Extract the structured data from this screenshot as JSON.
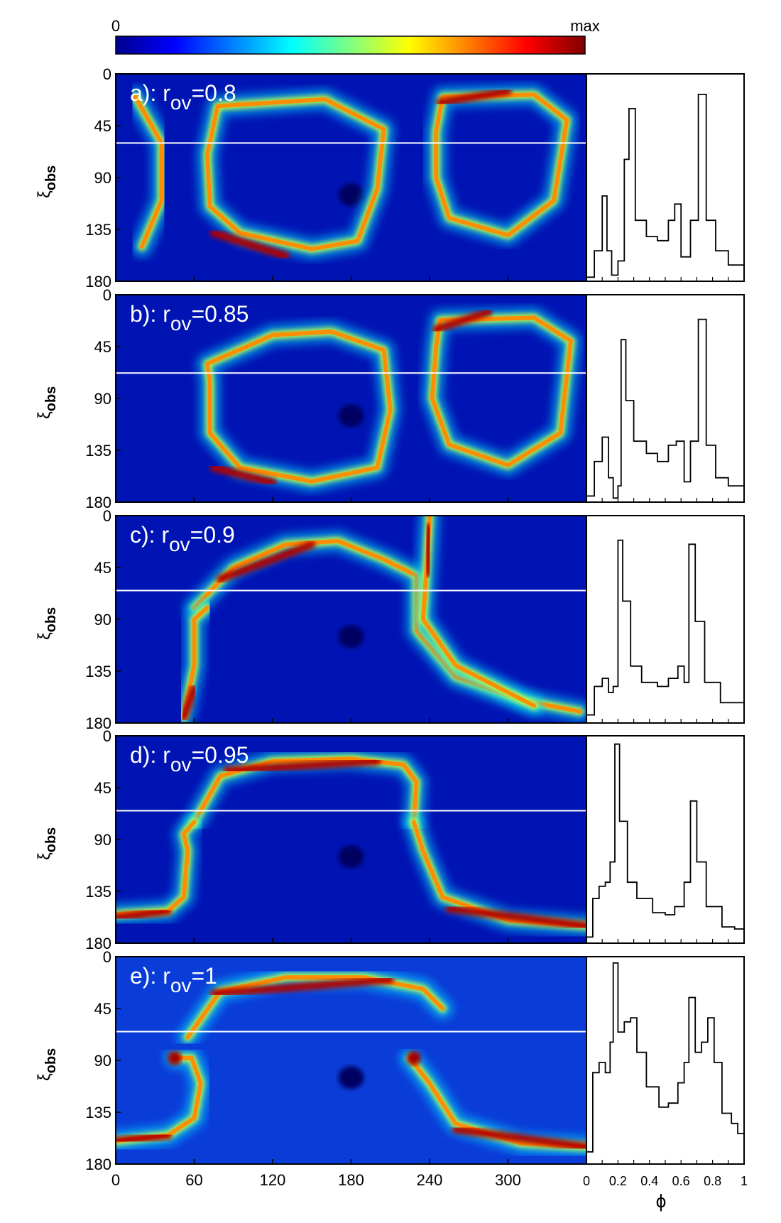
{
  "colorbar": {
    "min_label": "0",
    "max_label": "max",
    "colors": [
      "#00008f",
      "#0000ff",
      "#0080ff",
      "#00ffff",
      "#80ff80",
      "#ffff00",
      "#ff8000",
      "#ff0000",
      "#800000"
    ]
  },
  "heatmap_axes": {
    "x_ticks": [
      "0",
      "60",
      "120",
      "180",
      "240",
      "300"
    ],
    "y_ticks": [
      "0",
      "45",
      "90",
      "135",
      "180"
    ],
    "ylabel_main": "ξ",
    "ylabel_sub": "obs",
    "xlim": [
      0,
      360
    ],
    "ylim": [
      0,
      180
    ]
  },
  "profile_axes": {
    "x_ticks": [
      "0",
      "0.2",
      "0.4",
      "0.6",
      "0.8",
      "1"
    ],
    "xlabel": "ϕ",
    "xlim": [
      0,
      1
    ]
  },
  "chart_data": [
    {
      "type": "heatmap",
      "panel": "a",
      "title_prefix": "a): r",
      "title_sub": "ov",
      "title_suffix": "=0.8",
      "r_ov": 0.8,
      "cut_line_xi": 60,
      "curves": [
        {
          "from": 0,
          "pts": [
            [
              78,
              28
            ],
            [
              160,
              22
            ],
            [
              205,
              48
            ],
            [
              200,
              100
            ],
            [
              185,
              145
            ],
            [
              150,
              152
            ],
            [
              95,
              138
            ],
            [
              72,
              115
            ],
            [
              70,
              70
            ],
            [
              78,
              28
            ]
          ],
          "peak": [
            [
              75,
              138
            ],
            [
              130,
              158
            ]
          ]
        },
        {
          "from": 0,
          "pts": [
            [
              250,
              20
            ],
            [
              320,
              18
            ],
            [
              345,
              40
            ],
            [
              335,
              110
            ],
            [
              300,
              140
            ],
            [
              255,
              125
            ],
            [
              245,
              90
            ],
            [
              245,
              50
            ],
            [
              250,
              20
            ]
          ],
          "peak": [
            [
              248,
              25
            ],
            [
              300,
              15
            ]
          ]
        },
        {
          "from": 0,
          "pts": [
            [
              15,
              20
            ],
            [
              35,
              60
            ],
            [
              35,
              110
            ],
            [
              20,
              150
            ]
          ],
          "peak": null
        }
      ],
      "profile": [
        [
          0,
          0.02
        ],
        [
          0.05,
          0.15
        ],
        [
          0.1,
          0.42
        ],
        [
          0.13,
          0.15
        ],
        [
          0.16,
          0.03
        ],
        [
          0.2,
          0.1
        ],
        [
          0.24,
          0.6
        ],
        [
          0.27,
          0.85
        ],
        [
          0.31,
          0.3
        ],
        [
          0.38,
          0.22
        ],
        [
          0.45,
          0.2
        ],
        [
          0.52,
          0.3
        ],
        [
          0.56,
          0.38
        ],
        [
          0.6,
          0.12
        ],
        [
          0.66,
          0.3
        ],
        [
          0.71,
          0.92
        ],
        [
          0.76,
          0.3
        ],
        [
          0.82,
          0.15
        ],
        [
          0.9,
          0.08
        ],
        [
          1.0,
          0.06
        ]
      ]
    },
    {
      "type": "heatmap",
      "panel": "b",
      "title_prefix": "b): r",
      "title_sub": "ov",
      "title_suffix": "=0.85",
      "r_ov": 0.85,
      "cut_line_xi": 68,
      "curves": [
        {
          "from": 0,
          "pts": [
            [
              70,
              60
            ],
            [
              120,
              35
            ],
            [
              165,
              32
            ],
            [
              205,
              48
            ],
            [
              210,
              100
            ],
            [
              200,
              150
            ],
            [
              150,
              162
            ],
            [
              95,
              150
            ],
            [
              72,
              120
            ],
            [
              72,
              75
            ],
            [
              70,
              60
            ]
          ],
          "peak": [
            [
              75,
              150
            ],
            [
              120,
              163
            ]
          ]
        },
        {
          "from": 0,
          "pts": [
            [
              248,
              22
            ],
            [
              320,
              20
            ],
            [
              348,
              40
            ],
            [
              340,
              120
            ],
            [
              300,
              148
            ],
            [
              255,
              130
            ],
            [
              242,
              90
            ],
            [
              245,
              45
            ],
            [
              248,
              22
            ]
          ],
          "peak": [
            [
              245,
              30
            ],
            [
              285,
              15
            ]
          ]
        }
      ],
      "profile": [
        [
          0,
          0.03
        ],
        [
          0.05,
          0.2
        ],
        [
          0.1,
          0.32
        ],
        [
          0.14,
          0.12
        ],
        [
          0.17,
          0.02
        ],
        [
          0.2,
          0.08
        ],
        [
          0.22,
          0.8
        ],
        [
          0.25,
          0.5
        ],
        [
          0.3,
          0.3
        ],
        [
          0.38,
          0.24
        ],
        [
          0.45,
          0.2
        ],
        [
          0.52,
          0.28
        ],
        [
          0.57,
          0.3
        ],
        [
          0.62,
          0.1
        ],
        [
          0.66,
          0.3
        ],
        [
          0.71,
          0.9
        ],
        [
          0.76,
          0.28
        ],
        [
          0.82,
          0.12
        ],
        [
          0.9,
          0.08
        ],
        [
          1.0,
          0.07
        ]
      ]
    },
    {
      "type": "heatmap",
      "panel": "c",
      "title_prefix": "c): r",
      "title_sub": "ov",
      "title_suffix": "=0.9",
      "r_ov": 0.9,
      "cut_line_xi": 65,
      "curves": [
        {
          "from": 0,
          "pts": [
            [
              60,
              80
            ],
            [
              90,
              45
            ],
            [
              130,
              25
            ],
            [
              170,
              22
            ],
            [
              205,
              38
            ],
            [
              230,
              52
            ],
            [
              230,
              100
            ],
            [
              260,
              140
            ],
            [
              310,
              160
            ],
            [
              355,
              170
            ]
          ],
          "peak": [
            [
              80,
              55
            ],
            [
              150,
              25
            ]
          ]
        },
        {
          "from": 0,
          "pts": [
            [
              52,
              175
            ],
            [
              60,
              130
            ],
            [
              60,
              90
            ],
            [
              70,
              80
            ]
          ],
          "peak": [
            [
              52,
              175
            ],
            [
              60,
              150
            ]
          ]
        },
        {
          "from": 0,
          "pts": [
            [
              240,
              0
            ],
            [
              238,
              40
            ],
            [
              235,
              90
            ],
            [
              260,
              130
            ],
            [
              320,
              165
            ]
          ],
          "peak": [
            [
              240,
              10
            ],
            [
              238,
              50
            ]
          ]
        }
      ],
      "profile": [
        [
          0,
          0.04
        ],
        [
          0.05,
          0.18
        ],
        [
          0.1,
          0.22
        ],
        [
          0.14,
          0.15
        ],
        [
          0.17,
          0.18
        ],
        [
          0.2,
          0.9
        ],
        [
          0.23,
          0.6
        ],
        [
          0.28,
          0.28
        ],
        [
          0.35,
          0.2
        ],
        [
          0.45,
          0.18
        ],
        [
          0.52,
          0.22
        ],
        [
          0.58,
          0.28
        ],
        [
          0.62,
          0.2
        ],
        [
          0.65,
          0.88
        ],
        [
          0.69,
          0.5
        ],
        [
          0.75,
          0.2
        ],
        [
          0.85,
          0.1
        ],
        [
          0.94,
          0.1
        ],
        [
          1.0,
          0.05
        ]
      ]
    },
    {
      "type": "heatmap",
      "panel": "d",
      "title_prefix": "d): r",
      "title_sub": "ov",
      "title_suffix": "=0.95",
      "r_ov": 0.95,
      "cut_line_xi": 65,
      "curves": [
        {
          "from": 0,
          "pts": [
            [
              60,
              75
            ],
            [
              80,
              35
            ],
            [
              120,
              22
            ],
            [
              180,
              20
            ],
            [
              220,
              25
            ],
            [
              230,
              40
            ],
            [
              228,
              75
            ]
          ],
          "peak": [
            [
              85,
              30
            ],
            [
              200,
              22
            ]
          ]
        },
        {
          "from": 0,
          "pts": [
            [
              0,
              155
            ],
            [
              40,
              152
            ],
            [
              52,
              140
            ],
            [
              55,
              100
            ],
            [
              52,
              85
            ],
            [
              60,
              75
            ]
          ],
          "peak": [
            [
              0,
              158
            ],
            [
              40,
              152
            ]
          ]
        },
        {
          "from": 0,
          "pts": [
            [
              228,
              75
            ],
            [
              235,
              100
            ],
            [
              250,
              140
            ],
            [
              300,
              160
            ],
            [
              360,
              165
            ]
          ],
          "peak": [
            [
              255,
              150
            ],
            [
              360,
              165
            ]
          ]
        }
      ],
      "profile": [
        [
          0,
          0.03
        ],
        [
          0.04,
          0.22
        ],
        [
          0.08,
          0.28
        ],
        [
          0.12,
          0.3
        ],
        [
          0.15,
          0.4
        ],
        [
          0.18,
          0.98
        ],
        [
          0.21,
          0.6
        ],
        [
          0.26,
          0.3
        ],
        [
          0.32,
          0.22
        ],
        [
          0.42,
          0.15
        ],
        [
          0.5,
          0.14
        ],
        [
          0.56,
          0.18
        ],
        [
          0.62,
          0.3
        ],
        [
          0.66,
          0.7
        ],
        [
          0.7,
          0.4
        ],
        [
          0.76,
          0.18
        ],
        [
          0.86,
          0.08
        ],
        [
          0.94,
          0.07
        ],
        [
          1.0,
          0.04
        ]
      ]
    },
    {
      "type": "heatmap",
      "panel": "e",
      "title_prefix": "e): r",
      "title_sub": "ov",
      "title_suffix": "=1",
      "r_ov": 1,
      "cut_line_xi": 65,
      "curves": [
        {
          "from": 0,
          "pts": [
            [
              55,
              70
            ],
            [
              80,
              30
            ],
            [
              130,
              18
            ],
            [
              190,
              18
            ],
            [
              235,
              28
            ],
            [
              250,
              45
            ]
          ],
          "peak": [
            [
              75,
              32
            ],
            [
              210,
              20
            ]
          ]
        },
        {
          "from": 0,
          "pts": [
            [
              0,
              160
            ],
            [
              40,
              155
            ],
            [
              60,
              140
            ],
            [
              65,
              110
            ],
            [
              58,
              88
            ],
            [
              45,
              88
            ]
          ],
          "peak": [
            [
              0,
              160
            ],
            [
              40,
              155
            ]
          ]
        },
        {
          "from": 0,
          "pts": [
            [
              225,
              88
            ],
            [
              240,
              110
            ],
            [
              260,
              145
            ],
            [
              310,
              162
            ],
            [
              360,
              165
            ]
          ],
          "peak": [
            [
              260,
              150
            ],
            [
              360,
              165
            ]
          ]
        }
      ],
      "hotspots": [
        [
          45,
          88
        ],
        [
          228,
          88
        ]
      ],
      "profile": [
        [
          0,
          0.06
        ],
        [
          0.04,
          0.45
        ],
        [
          0.08,
          0.5
        ],
        [
          0.12,
          0.45
        ],
        [
          0.15,
          0.6
        ],
        [
          0.17,
          0.99
        ],
        [
          0.2,
          0.65
        ],
        [
          0.24,
          0.7
        ],
        [
          0.28,
          0.72
        ],
        [
          0.32,
          0.55
        ],
        [
          0.38,
          0.38
        ],
        [
          0.46,
          0.28
        ],
        [
          0.52,
          0.3
        ],
        [
          0.58,
          0.4
        ],
        [
          0.62,
          0.5
        ],
        [
          0.65,
          0.82
        ],
        [
          0.69,
          0.55
        ],
        [
          0.73,
          0.6
        ],
        [
          0.77,
          0.72
        ],
        [
          0.81,
          0.5
        ],
        [
          0.86,
          0.25
        ],
        [
          0.92,
          0.2
        ],
        [
          0.96,
          0.15
        ],
        [
          1.0,
          0.05
        ]
      ]
    }
  ]
}
